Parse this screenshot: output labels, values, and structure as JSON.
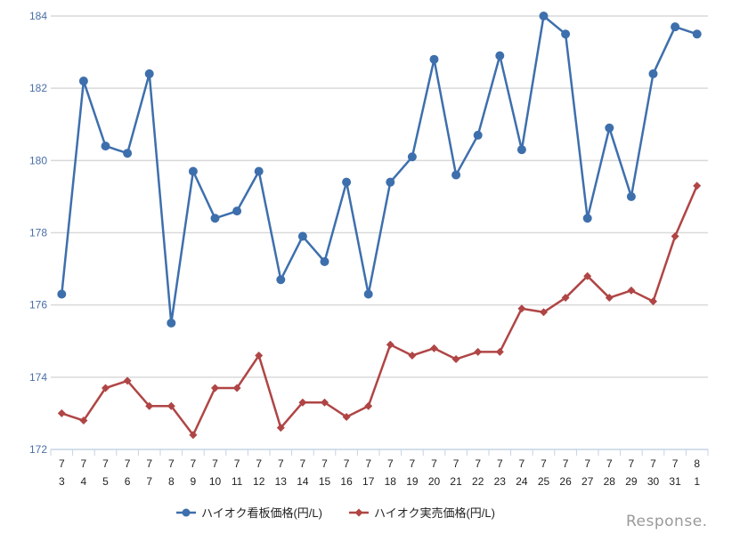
{
  "chart_data": {
    "type": "line",
    "title": "",
    "xlabel": "",
    "ylabel": "",
    "ylim": [
      172,
      184
    ],
    "yticks": [
      172,
      174,
      176,
      178,
      180,
      182,
      184
    ],
    "grid": true,
    "legend_position": "bottom",
    "categories": [
      {
        "month": "7",
        "day": "3"
      },
      {
        "month": "7",
        "day": "4"
      },
      {
        "month": "7",
        "day": "5"
      },
      {
        "month": "7",
        "day": "6"
      },
      {
        "month": "7",
        "day": "7"
      },
      {
        "month": "7",
        "day": "8"
      },
      {
        "month": "7",
        "day": "9"
      },
      {
        "month": "7",
        "day": "10"
      },
      {
        "month": "7",
        "day": "11"
      },
      {
        "month": "7",
        "day": "12"
      },
      {
        "month": "7",
        "day": "13"
      },
      {
        "month": "7",
        "day": "14"
      },
      {
        "month": "7",
        "day": "15"
      },
      {
        "month": "7",
        "day": "16"
      },
      {
        "month": "7",
        "day": "17"
      },
      {
        "month": "7",
        "day": "18"
      },
      {
        "month": "7",
        "day": "19"
      },
      {
        "month": "7",
        "day": "20"
      },
      {
        "month": "7",
        "day": "21"
      },
      {
        "month": "7",
        "day": "22"
      },
      {
        "month": "7",
        "day": "23"
      },
      {
        "month": "7",
        "day": "24"
      },
      {
        "month": "7",
        "day": "25"
      },
      {
        "month": "7",
        "day": "26"
      },
      {
        "month": "7",
        "day": "27"
      },
      {
        "month": "7",
        "day": "28"
      },
      {
        "month": "7",
        "day": "29"
      },
      {
        "month": "7",
        "day": "30"
      },
      {
        "month": "7",
        "day": "31"
      },
      {
        "month": "8",
        "day": "1"
      }
    ],
    "series": [
      {
        "name": "ハイオク看板価格(円/L)",
        "color": "#3e6fad",
        "marker": "circle",
        "values": [
          176.3,
          182.2,
          180.4,
          180.2,
          182.4,
          175.5,
          179.7,
          178.4,
          178.6,
          179.7,
          176.7,
          177.9,
          177.2,
          179.4,
          176.3,
          179.4,
          180.1,
          182.8,
          179.6,
          180.7,
          182.9,
          180.3,
          184.0,
          183.5,
          178.4,
          180.9,
          179.0,
          182.4,
          183.7,
          183.5
        ]
      },
      {
        "name": "ハイオク実売価格(円/L)",
        "color": "#b04545",
        "marker": "diamond",
        "values": [
          173.0,
          172.8,
          173.7,
          173.9,
          173.2,
          173.2,
          172.4,
          173.7,
          173.7,
          174.6,
          172.6,
          173.3,
          173.3,
          172.9,
          173.2,
          174.9,
          174.6,
          174.8,
          174.5,
          174.7,
          174.7,
          175.9,
          175.8,
          176.2,
          176.8,
          176.2,
          176.4,
          176.1,
          177.9,
          179.3
        ]
      }
    ]
  },
  "legend": {
    "items": [
      {
        "label": "ハイオク看板価格(円/L)",
        "color": "#3e6fad"
      },
      {
        "label": "ハイオク実売価格(円/L)",
        "color": "#b04545"
      }
    ]
  },
  "watermark": {
    "text": "Response."
  }
}
